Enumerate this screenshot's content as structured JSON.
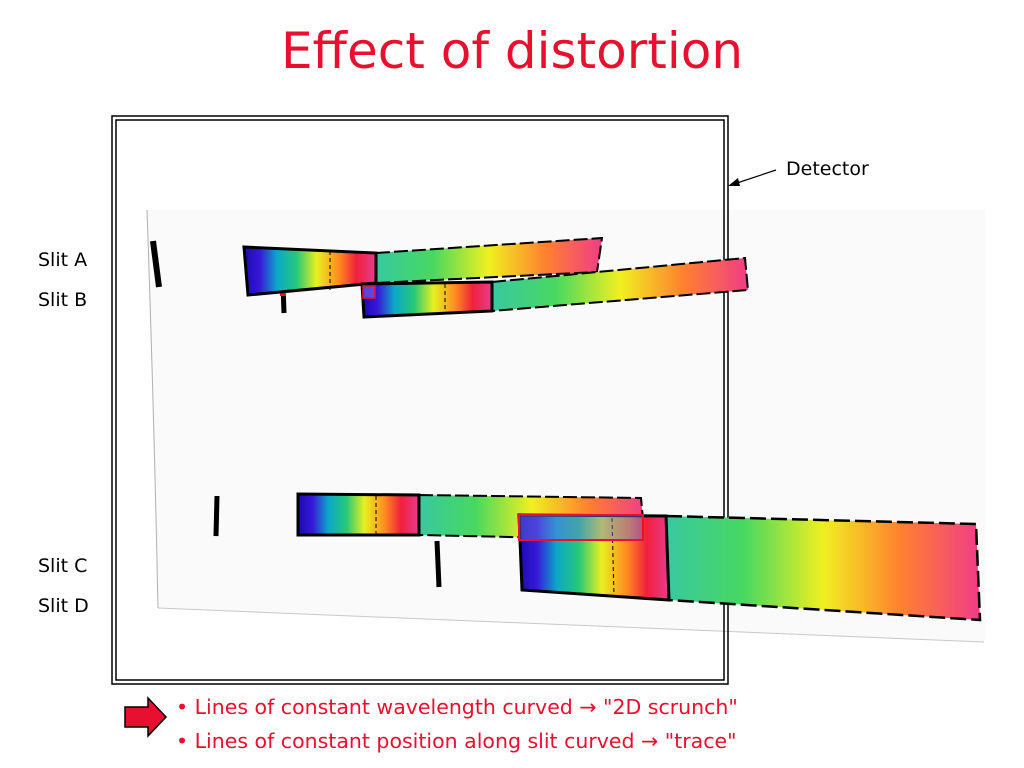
{
  "title": "Effect of distortion",
  "labels": {
    "detector": "Detector",
    "slit_a": "Slit A",
    "slit_b": "Slit B",
    "slit_c": "Slit C",
    "slit_d": "Slit D"
  },
  "bullets": [
    "• Lines of constant wavelength curved → \"2D scrunch\"",
    "• Lines of constant position along slit curved →  \"trace\""
  ],
  "colors": {
    "title": "#e8102e",
    "bullets": "#e8102e",
    "arrow": "#e8102e",
    "spectrum": [
      "#1a0ab0",
      "#3818d8",
      "#0aa8c8",
      "#28c878",
      "#e8f020",
      "#ff8a20",
      "#f0203c",
      "#e83c90"
    ]
  }
}
